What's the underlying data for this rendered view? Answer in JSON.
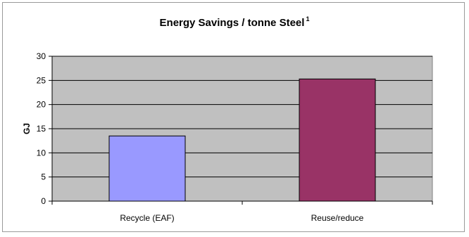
{
  "chart_data": {
    "type": "bar",
    "title": "Energy Savings / tonne Steel",
    "title_superscript": "1",
    "ylabel": "GJ",
    "xlabel": "",
    "categories": [
      "Recycle (EAF)",
      "Reuse/reduce"
    ],
    "values": [
      13.5,
      25.3
    ],
    "bar_colors": [
      "#9999ff",
      "#993366"
    ],
    "ylim": [
      0,
      30
    ],
    "yticks": [
      0,
      5,
      10,
      15,
      20,
      25,
      30
    ],
    "grid": true,
    "plot_background": "#c0c0c0",
    "legend": "none"
  }
}
